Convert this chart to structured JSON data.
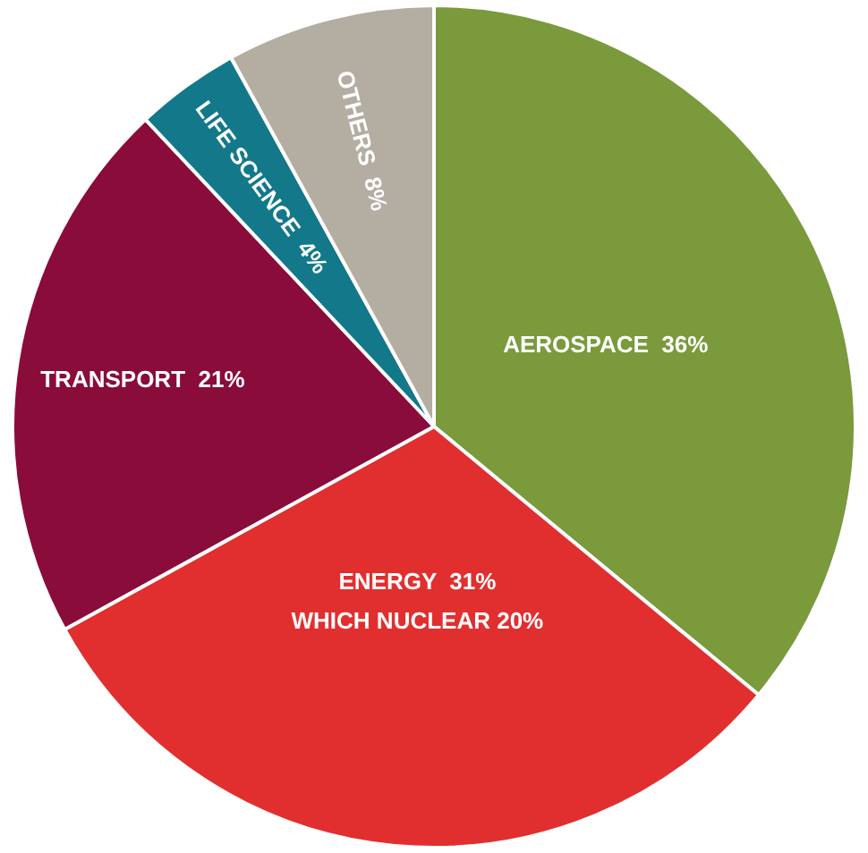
{
  "chart_data": {
    "type": "pie",
    "categories": [
      "AEROSPACE",
      "ENERGY",
      "TRANSPORT",
      "LIFE SCIENCE",
      "OTHERS"
    ],
    "values": [
      36,
      31,
      21,
      4,
      8
    ],
    "colors": [
      "#7a9a3c",
      "#e12f2f",
      "#8a0c3a",
      "#13788a",
      "#b3ada2"
    ],
    "value_labels": [
      "36%",
      "31%",
      "21%",
      "4%",
      "8%"
    ],
    "annotations": [
      {
        "text": "WHICH NUCLEAR 20%",
        "x": "ENERGY"
      }
    ],
    "legend": false
  }
}
